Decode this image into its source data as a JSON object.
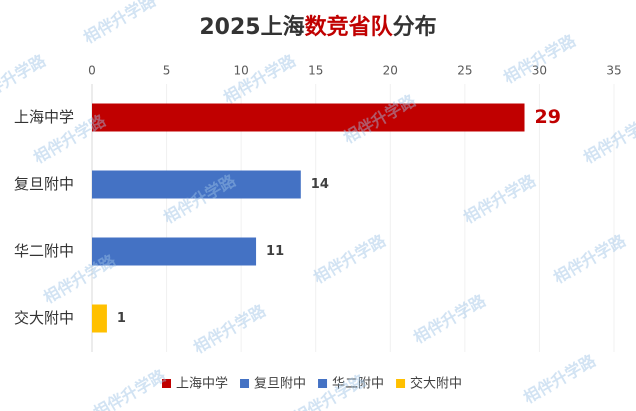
{
  "chart_data": {
    "type": "bar",
    "orientation": "horizontal",
    "title": [
      "2025上海",
      "数竞省队",
      "分布"
    ],
    "title_colors": [
      "#333333",
      "#c00000",
      "#333333"
    ],
    "categories": [
      "上海中学",
      "复旦附中",
      "华二附中",
      "交大附中"
    ],
    "values": [
      29,
      14,
      11,
      1
    ],
    "colors": [
      "#c00000",
      "#4472c4",
      "#4472c4",
      "#ffc000"
    ],
    "xlim": [
      0,
      35
    ],
    "xticks": [
      0,
      5,
      10,
      15,
      20,
      25,
      30,
      35
    ],
    "legend": "bottom",
    "watermark": "相伴升学路"
  }
}
